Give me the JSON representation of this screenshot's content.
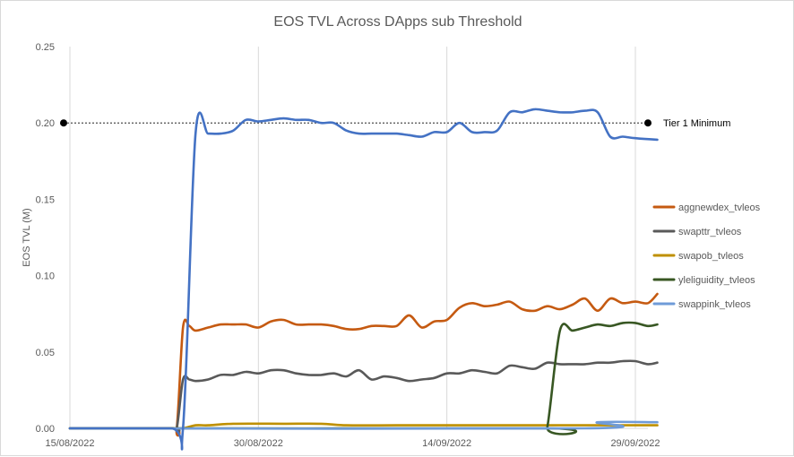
{
  "chart_data": {
    "type": "line",
    "title": "EOS TVL Across DApps sub Threshold",
    "xlabel": "",
    "ylabel": "EOS TVL (M)",
    "ylim": [
      0,
      0.25
    ],
    "yticks": [
      "0.00",
      "0.05",
      "0.10",
      "0.15",
      "0.20",
      "0.25"
    ],
    "xticks": [
      {
        "date": "2022-08-15",
        "label": "15/08/2022"
      },
      {
        "date": "2022-08-30",
        "label": "30/08/2022"
      },
      {
        "date": "2022-09-14",
        "label": "14/09/2022"
      },
      {
        "date": "2022-09-29",
        "label": "29/09/2022"
      }
    ],
    "xlim": [
      "2022-08-15",
      "2022-09-30"
    ],
    "grid": "vertical",
    "legend_position": "right",
    "reference_line": {
      "value": 0.2,
      "label": "Tier 1 Minimum",
      "color": "#000000"
    },
    "series": [
      {
        "name": "aggnewdex_tvleos",
        "color": "#c55a11",
        "points": [
          [
            "2022-08-15",
            0
          ],
          [
            "2022-08-23",
            0
          ],
          [
            "2022-08-23 12:00",
            0
          ],
          [
            "2022-08-24",
            0.066
          ],
          [
            "2022-08-24 12:00",
            0.067
          ],
          [
            "2022-08-25",
            0.064
          ],
          [
            "2022-08-26",
            0.066
          ],
          [
            "2022-08-27",
            0.068
          ],
          [
            "2022-08-28",
            0.068
          ],
          [
            "2022-08-29",
            0.068
          ],
          [
            "2022-08-30",
            0.066
          ],
          [
            "2022-08-31",
            0.07
          ],
          [
            "2022-09-01",
            0.071
          ],
          [
            "2022-09-02",
            0.068
          ],
          [
            "2022-09-03",
            0.068
          ],
          [
            "2022-09-04",
            0.068
          ],
          [
            "2022-09-05",
            0.067
          ],
          [
            "2022-09-06",
            0.065
          ],
          [
            "2022-09-07",
            0.065
          ],
          [
            "2022-09-08",
            0.067
          ],
          [
            "2022-09-09",
            0.067
          ],
          [
            "2022-09-10",
            0.067
          ],
          [
            "2022-09-11",
            0.074
          ],
          [
            "2022-09-12",
            0.066
          ],
          [
            "2022-09-13",
            0.07
          ],
          [
            "2022-09-14",
            0.071
          ],
          [
            "2022-09-15",
            0.079
          ],
          [
            "2022-09-16",
            0.082
          ],
          [
            "2022-09-17",
            0.08
          ],
          [
            "2022-09-18",
            0.081
          ],
          [
            "2022-09-19",
            0.083
          ],
          [
            "2022-09-20",
            0.078
          ],
          [
            "2022-09-21",
            0.077
          ],
          [
            "2022-09-22",
            0.08
          ],
          [
            "2022-09-23",
            0.078
          ],
          [
            "2022-09-24",
            0.081
          ],
          [
            "2022-09-25",
            0.085
          ],
          [
            "2022-09-26",
            0.077
          ],
          [
            "2022-09-27",
            0.085
          ],
          [
            "2022-09-28",
            0.082
          ],
          [
            "2022-09-29",
            0.083
          ],
          [
            "2022-09-30",
            0.082
          ],
          [
            "2022-09-30 18:00",
            0.088
          ]
        ]
      },
      {
        "name": "swapttr_tvleos",
        "color": "#595959",
        "points": [
          [
            "2022-08-15",
            0
          ],
          [
            "2022-08-23",
            0
          ],
          [
            "2022-08-23 12:00",
            0
          ],
          [
            "2022-08-24",
            0.032
          ],
          [
            "2022-08-24 12:00",
            0.032
          ],
          [
            "2022-08-25",
            0.031
          ],
          [
            "2022-08-26",
            0.032
          ],
          [
            "2022-08-27",
            0.035
          ],
          [
            "2022-08-28",
            0.035
          ],
          [
            "2022-08-29",
            0.037
          ],
          [
            "2022-08-30",
            0.036
          ],
          [
            "2022-08-31",
            0.038
          ],
          [
            "2022-09-01",
            0.038
          ],
          [
            "2022-09-02",
            0.036
          ],
          [
            "2022-09-03",
            0.035
          ],
          [
            "2022-09-04",
            0.035
          ],
          [
            "2022-09-05",
            0.036
          ],
          [
            "2022-09-06",
            0.034
          ],
          [
            "2022-09-07",
            0.038
          ],
          [
            "2022-09-08",
            0.032
          ],
          [
            "2022-09-09",
            0.034
          ],
          [
            "2022-09-10",
            0.033
          ],
          [
            "2022-09-11",
            0.031
          ],
          [
            "2022-09-12",
            0.032
          ],
          [
            "2022-09-13",
            0.033
          ],
          [
            "2022-09-14",
            0.036
          ],
          [
            "2022-09-15",
            0.036
          ],
          [
            "2022-09-16",
            0.038
          ],
          [
            "2022-09-17",
            0.037
          ],
          [
            "2022-09-18",
            0.036
          ],
          [
            "2022-09-19",
            0.041
          ],
          [
            "2022-09-20",
            0.04
          ],
          [
            "2022-09-21",
            0.039
          ],
          [
            "2022-09-22",
            0.043
          ],
          [
            "2022-09-23",
            0.042
          ],
          [
            "2022-09-24",
            0.042
          ],
          [
            "2022-09-25",
            0.042
          ],
          [
            "2022-09-26",
            0.043
          ],
          [
            "2022-09-27",
            0.043
          ],
          [
            "2022-09-28",
            0.044
          ],
          [
            "2022-09-29",
            0.044
          ],
          [
            "2022-09-30",
            0.042
          ],
          [
            "2022-09-30 18:00",
            0.043
          ]
        ]
      },
      {
        "name": "swapob_tvleos",
        "color": "#bf9000",
        "points": [
          [
            "2022-08-15",
            0
          ],
          [
            "2022-08-23",
            0
          ],
          [
            "2022-08-24",
            0
          ],
          [
            "2022-08-25",
            0.002
          ],
          [
            "2022-08-26",
            0.002
          ],
          [
            "2022-08-28",
            0.003
          ],
          [
            "2022-09-01",
            0.003
          ],
          [
            "2022-09-04",
            0.003
          ],
          [
            "2022-09-06",
            0.002
          ],
          [
            "2022-09-10",
            0.002
          ],
          [
            "2022-09-14",
            0.002
          ],
          [
            "2022-09-18",
            0.002
          ],
          [
            "2022-09-22",
            0.002
          ],
          [
            "2022-09-26",
            0.002
          ],
          [
            "2022-09-30 18:00",
            0.002
          ]
        ]
      },
      {
        "name": "yleliguidity_tvleos",
        "color": "#385723",
        "points": [
          [
            "2022-08-15",
            0
          ],
          [
            "2022-09-21 12:00",
            0
          ],
          [
            "2022-09-22",
            0.001
          ],
          [
            "2022-09-23",
            0.064
          ],
          [
            "2022-09-24",
            0.064
          ],
          [
            "2022-09-25",
            0.066
          ],
          [
            "2022-09-26",
            0.068
          ],
          [
            "2022-09-27",
            0.067
          ],
          [
            "2022-09-28",
            0.069
          ],
          [
            "2022-09-29",
            0.069
          ],
          [
            "2022-09-30",
            0.067
          ],
          [
            "2022-09-30 18:00",
            0.068
          ]
        ]
      },
      {
        "name": "swappink_tvleos",
        "color": "#6f9bd8",
        "points": [
          [
            "2022-08-15",
            0
          ],
          [
            "2022-09-25",
            0
          ],
          [
            "2022-09-26",
            0.004
          ],
          [
            "2022-09-30 18:00",
            0.004
          ]
        ]
      },
      {
        "name": "",
        "color": "#4472c4",
        "points": [
          [
            "2022-08-15",
            0
          ],
          [
            "2022-08-23",
            0
          ],
          [
            "2022-08-24",
            0
          ],
          [
            "2022-08-25",
            0.193
          ],
          [
            "2022-08-26",
            0.193
          ],
          [
            "2022-08-27",
            0.193
          ],
          [
            "2022-08-28",
            0.195
          ],
          [
            "2022-08-29",
            0.202
          ],
          [
            "2022-08-30",
            0.201
          ],
          [
            "2022-08-31",
            0.202
          ],
          [
            "2022-09-01",
            0.203
          ],
          [
            "2022-09-02",
            0.202
          ],
          [
            "2022-09-03",
            0.202
          ],
          [
            "2022-09-04",
            0.2
          ],
          [
            "2022-09-05",
            0.2
          ],
          [
            "2022-09-06",
            0.195
          ],
          [
            "2022-09-07",
            0.193
          ],
          [
            "2022-09-08",
            0.193
          ],
          [
            "2022-09-09",
            0.193
          ],
          [
            "2022-09-10",
            0.193
          ],
          [
            "2022-09-11",
            0.192
          ],
          [
            "2022-09-12",
            0.191
          ],
          [
            "2022-09-13",
            0.194
          ],
          [
            "2022-09-14",
            0.194
          ],
          [
            "2022-09-15",
            0.2
          ],
          [
            "2022-09-16",
            0.194
          ],
          [
            "2022-09-17",
            0.194
          ],
          [
            "2022-09-18",
            0.195
          ],
          [
            "2022-09-19",
            0.207
          ],
          [
            "2022-09-20",
            0.207
          ],
          [
            "2022-09-21",
            0.209
          ],
          [
            "2022-09-22",
            0.208
          ],
          [
            "2022-09-23",
            0.207
          ],
          [
            "2022-09-24",
            0.207
          ],
          [
            "2022-09-25",
            0.208
          ],
          [
            "2022-09-26",
            0.207
          ],
          [
            "2022-09-27",
            0.191
          ],
          [
            "2022-09-28",
            0.191
          ],
          [
            "2022-09-29",
            0.19
          ],
          [
            "2022-09-30 18:00",
            0.189
          ]
        ]
      }
    ]
  }
}
